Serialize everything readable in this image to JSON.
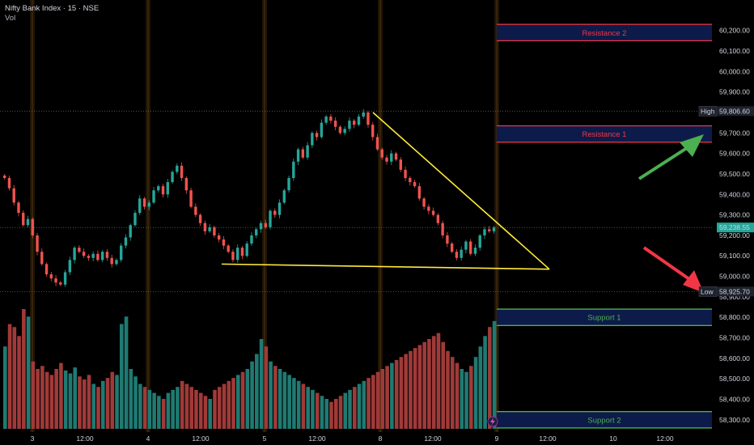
{
  "header": {
    "title": "Nifty Bank Index · 15 · NSE",
    "volume_label": "Vol"
  },
  "colors": {
    "up": "#26a69a",
    "down": "#ef5350",
    "vol_up": "#1f7a72",
    "vol_down": "#a03a38",
    "trendline": "#ffeb3b",
    "resistance_border": "#f23645",
    "support_border": "#4caf50",
    "zone_fill": "#0d1b4a",
    "arrow_up": "#4caf50",
    "arrow_down": "#f23645",
    "session_glow": "#5a3a10"
  },
  "price_axis": {
    "ticks": [
      "60,200.00",
      "60,100.00",
      "60,000.00",
      "59,900.00",
      "59,800.00",
      "59,700.00",
      "59,600.00",
      "59,500.00",
      "59,400.00",
      "59,300.00",
      "59,200.00",
      "59,100.00",
      "59,000.00",
      "58,900.00",
      "58,800.00",
      "58,700.00",
      "58,600.00",
      "58,500.00",
      "58,400.00",
      "58,300.00"
    ],
    "high_label": "High",
    "high_value": "59,806.60",
    "last_value": "59,238.55",
    "low_label": "Low",
    "low_value": "58,925.70"
  },
  "time_axis": {
    "labels": [
      "3",
      "12:00",
      "4",
      "12:00",
      "5",
      "12:00",
      "8",
      "12:00",
      "9",
      "12:00",
      "10",
      "12:00"
    ]
  },
  "zones": {
    "resistance_2": {
      "label": "Resistance 2",
      "low": 60150,
      "high": 60230
    },
    "resistance_1": {
      "label": "Resistance 1",
      "low": 59655,
      "high": 59735
    },
    "support_1": {
      "label": "Support 1",
      "low": 58760,
      "high": 58840
    },
    "support_2": {
      "label": "Support 2",
      "low": 58260,
      "high": 58340
    }
  },
  "chart_data": {
    "type": "candlestick",
    "symbol": "Nifty Bank Index",
    "interval": "15",
    "exchange": "NSE",
    "ylim": [
      58240,
      60270
    ],
    "grid": false,
    "high": 59806.6,
    "low": 58925.7,
    "last": 59238.55,
    "sessions": [
      "3",
      "4",
      "5",
      "8",
      "9"
    ],
    "close_series": [
      59480,
      59430,
      59360,
      59310,
      59250,
      59280,
      59200,
      59120,
      59060,
      59010,
      58990,
      58970,
      58960,
      59020,
      59080,
      59140,
      59120,
      59100,
      59090,
      59110,
      59080,
      59120,
      59090,
      59060,
      59080,
      59150,
      59190,
      59250,
      59310,
      59380,
      59340,
      59360,
      59420,
      59440,
      59400,
      59460,
      59510,
      59540,
      59480,
      59420,
      59340,
      59300,
      59260,
      59220,
      59240,
      59200,
      59180,
      59150,
      59120,
      59080,
      59140,
      59100,
      59160,
      59200,
      59230,
      59260,
      59240,
      59320,
      59300,
      59360,
      59420,
      59480,
      59560,
      59620,
      59580,
      59640,
      59700,
      59680,
      59750,
      59780,
      59760,
      59730,
      59700,
      59720,
      59760,
      59740,
      59780,
      59800,
      59740,
      59680,
      59620,
      59580,
      59560,
      59600,
      59570,
      59520,
      59480,
      59460,
      59440,
      59380,
      59340,
      59320,
      59300,
      59260,
      59200,
      59160,
      59120,
      59090,
      59130,
      59170,
      59110,
      59140,
      59200,
      59230,
      59220,
      59238.55
    ],
    "volume": [
      55,
      70,
      68,
      62,
      80,
      75,
      45,
      40,
      42,
      38,
      36,
      40,
      44,
      39,
      37,
      41,
      35,
      33,
      36,
      30,
      28,
      32,
      34,
      38,
      36,
      70,
      75,
      40,
      35,
      30,
      28,
      26,
      24,
      22,
      20,
      24,
      26,
      28,
      32,
      30,
      28,
      26,
      24,
      22,
      20,
      26,
      28,
      30,
      32,
      34,
      36,
      38,
      40,
      45,
      50,
      60,
      55,
      45,
      42,
      40,
      38,
      36,
      34,
      32,
      30,
      28,
      26,
      24,
      22,
      20,
      18,
      20,
      22,
      24,
      26,
      28,
      30,
      32,
      34,
      36,
      38,
      40,
      42,
      44,
      46,
      48,
      50,
      52,
      54,
      56,
      58,
      60,
      62,
      64,
      58,
      52,
      48,
      44,
      40,
      38,
      42,
      48,
      55,
      62,
      68,
      72
    ],
    "trendlines": [
      {
        "name": "descending-resistance",
        "from": [
          "8",
          59800
        ],
        "to": [
          "9",
          59035
        ]
      },
      {
        "name": "ascending-support",
        "from": [
          "4",
          59060
        ],
        "to": [
          "9",
          59035
        ]
      }
    ]
  }
}
